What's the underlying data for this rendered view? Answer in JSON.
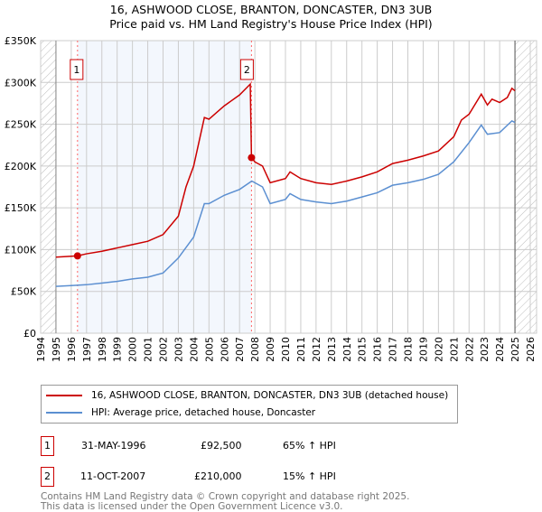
{
  "chart_data": {
    "type": "line",
    "title": "16, ASHWOOD CLOSE, BRANTON, DONCASTER, DN3 3UB",
    "subtitle": "Price paid vs. HM Land Registry's House Price Index (HPI)",
    "xlim": [
      1994,
      2026
    ],
    "ylim": [
      0,
      350000
    ],
    "x_ticks": [
      "1994",
      "1995",
      "1996",
      "1997",
      "1998",
      "1999",
      "2000",
      "2001",
      "2002",
      "2003",
      "2004",
      "2005",
      "2006",
      "2007",
      "2008",
      "2009",
      "2010",
      "2011",
      "2012",
      "2013",
      "2014",
      "2015",
      "2016",
      "2017",
      "2018",
      "2019",
      "2020",
      "2021",
      "2022",
      "2023",
      "2024",
      "2025",
      "2026"
    ],
    "y_ticks": [
      {
        "v": 0,
        "l": "£0"
      },
      {
        "v": 50000,
        "l": "£50K"
      },
      {
        "v": 100000,
        "l": "£100K"
      },
      {
        "v": 150000,
        "l": "£150K"
      },
      {
        "v": 200000,
        "l": "£200K"
      },
      {
        "v": 250000,
        "l": "£250K"
      },
      {
        "v": 300000,
        "l": "£300K"
      },
      {
        "v": 350000,
        "l": "£350K"
      }
    ],
    "grid": true,
    "series": [
      {
        "name": "16, ASHWOOD CLOSE, BRANTON, DONCASTER, DN3 3UB (detached house)",
        "color": "#cc0000",
        "x": [
          1995,
          1996.4,
          1997,
          1998,
          1999,
          2000,
          2001,
          2002,
          2003,
          2003.5,
          2004,
          2004.7,
          2005,
          2006,
          2007,
          2007.7,
          2007.78,
          2008,
          2008.5,
          2009,
          2010,
          2010.3,
          2011,
          2012,
          2013,
          2014,
          2015,
          2016,
          2017,
          2018,
          2019,
          2020,
          2021,
          2021.5,
          2022,
          2022.8,
          2023.2,
          2023.5,
          2024,
          2024.5,
          2024.8,
          2025
        ],
        "y": [
          91000,
          92500,
          95000,
          98000,
          102000,
          106000,
          110000,
          118000,
          140000,
          175000,
          200000,
          258000,
          256000,
          272000,
          285000,
          298000,
          210000,
          205000,
          200000,
          180000,
          185000,
          193000,
          185000,
          180000,
          178000,
          182000,
          187000,
          193000,
          203000,
          207000,
          212000,
          218000,
          235000,
          255000,
          262000,
          286000,
          273000,
          280000,
          276000,
          282000,
          293000,
          290000
        ]
      },
      {
        "name": "HPI: Average price, detached house, Doncaster",
        "color": "#5b8fd1",
        "x": [
          1995,
          1996,
          1997,
          1998,
          1999,
          2000,
          2001,
          2002,
          2003,
          2004,
          2004.7,
          2005,
          2006,
          2007,
          2007.8,
          2008.5,
          2009,
          2010,
          2010.3,
          2011,
          2012,
          2013,
          2014,
          2015,
          2016,
          2017,
          2018,
          2019,
          2020,
          2021,
          2022,
          2022.8,
          2023.2,
          2024,
          2024.8,
          2025
        ],
        "y": [
          56000,
          57000,
          58000,
          60000,
          62000,
          65000,
          67000,
          72000,
          90000,
          115000,
          155000,
          155000,
          165000,
          172000,
          182000,
          175000,
          155000,
          160000,
          167000,
          160000,
          157000,
          155000,
          158000,
          163000,
          168000,
          177000,
          180000,
          184000,
          190000,
          205000,
          228000,
          249000,
          238000,
          240000,
          254000,
          252000
        ]
      }
    ],
    "sales": [
      {
        "n": "1",
        "x": 1996.41,
        "y": 92500,
        "date": "31-MAY-1996",
        "price": "£92,500",
        "hpi": "65% ↑ HPI"
      },
      {
        "n": "2",
        "x": 2007.78,
        "y": 210000,
        "date": "11-OCT-2007",
        "price": "£210,000",
        "hpi": "15% ↑ HPI"
      }
    ]
  },
  "footer": {
    "line1": "Contains HM Land Registry data © Crown copyright and database right 2025.",
    "line2": "This data is licensed under the Open Government Licence v3.0."
  }
}
